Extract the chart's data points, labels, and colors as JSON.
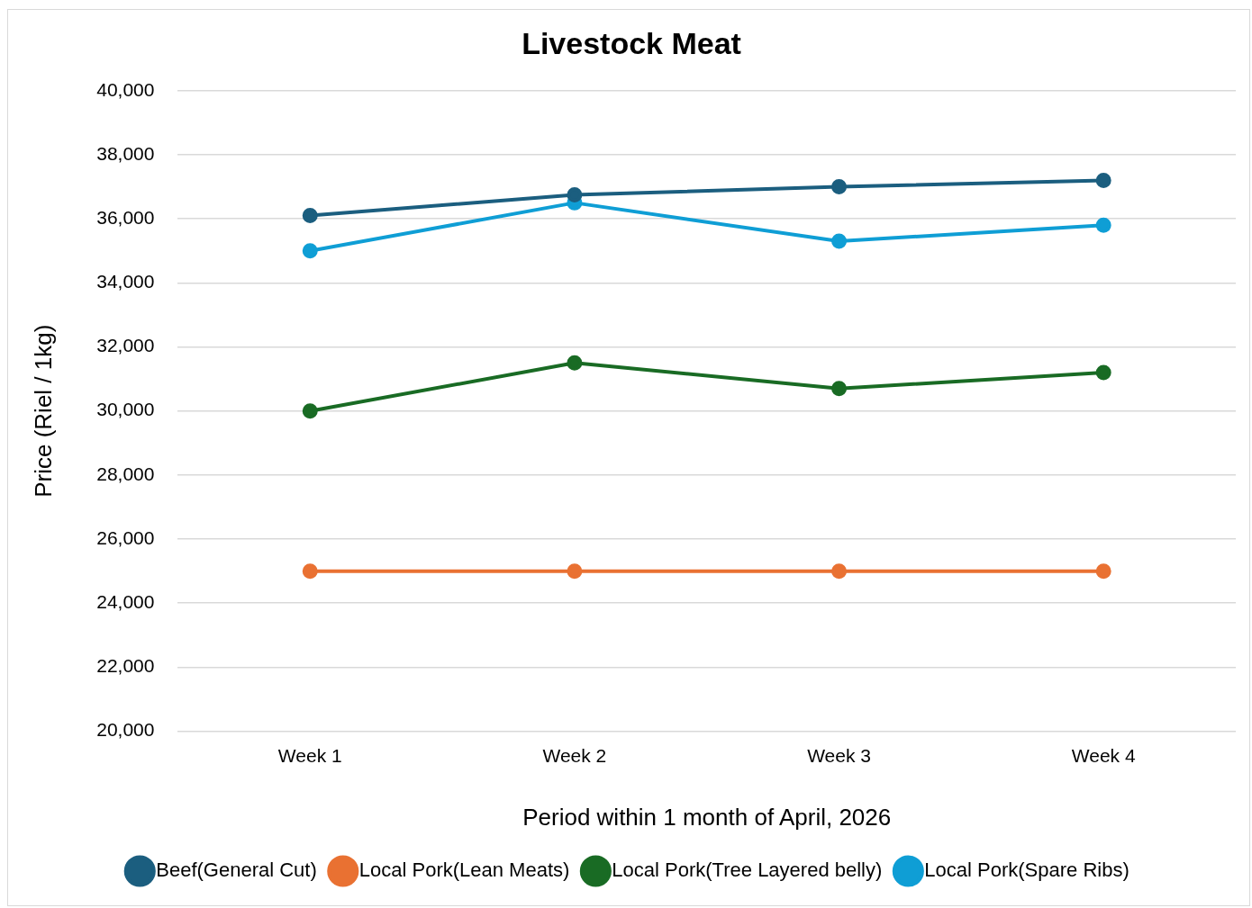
{
  "chart_data": {
    "type": "line",
    "title": "Livestock Meat",
    "xlabel": "Period within 1 month of April, 2026",
    "ylabel": "Price (Riel / 1kg)",
    "categories": [
      "Week 1",
      "Week 2",
      "Week 3",
      "Week 4"
    ],
    "series": [
      {
        "name": "Beef(General Cut)",
        "color": "#1b5e7f",
        "values": [
          36100,
          36750,
          37000,
          37200
        ]
      },
      {
        "name": "Local Pork(Lean Meats)",
        "color": "#e97132",
        "values": [
          25000,
          25000,
          25000,
          25000
        ]
      },
      {
        "name": "Local Pork(Tree Layered belly)",
        "color": "#196b24",
        "values": [
          30000,
          31500,
          30700,
          31200
        ]
      },
      {
        "name": "Local Pork(Spare Ribs)",
        "color": "#0f9ed5",
        "values": [
          35000,
          36500,
          35300,
          35800
        ]
      }
    ],
    "ylim": [
      20000,
      40000
    ],
    "yticks": [
      {
        "value": 20000,
        "label": "20,000"
      },
      {
        "value": 22000,
        "label": "22,000"
      },
      {
        "value": 24000,
        "label": "24,000"
      },
      {
        "value": 26000,
        "label": "26,000"
      },
      {
        "value": 28000,
        "label": "28,000"
      },
      {
        "value": 30000,
        "label": "30,000"
      },
      {
        "value": 32000,
        "label": "32,000"
      },
      {
        "value": 34000,
        "label": "34,000"
      },
      {
        "value": 36000,
        "label": "36,000"
      },
      {
        "value": 38000,
        "label": "38,000"
      },
      {
        "value": 40000,
        "label": "40,000"
      }
    ],
    "grid": "y",
    "legend": "bottom",
    "marker": "circle",
    "line_style": "solid"
  }
}
